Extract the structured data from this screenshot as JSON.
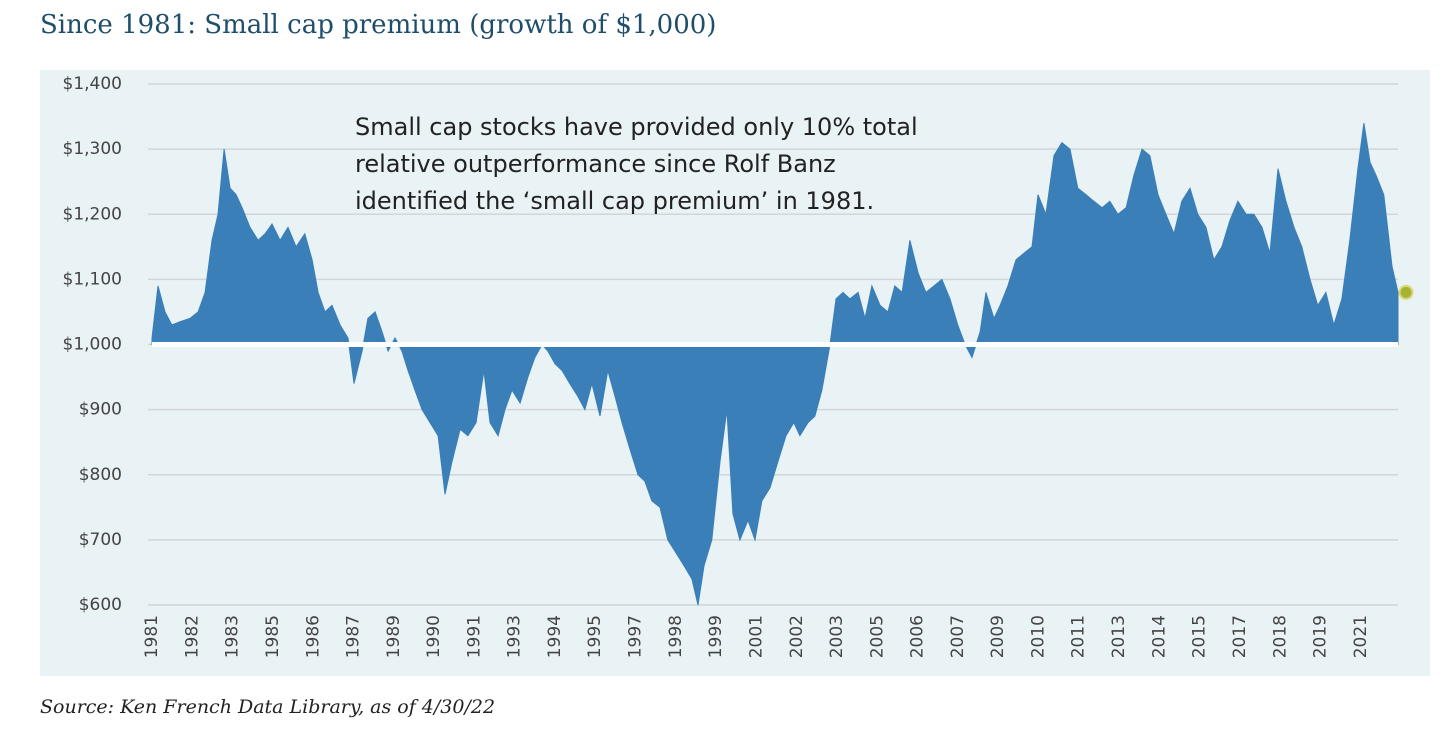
{
  "chart_data": {
    "type": "area",
    "title": "Since 1981: Small cap premium (growth of $1,000)",
    "annotation": [
      "Small cap stocks have provided only 10% total",
      "relative outperformance since Rolf Banz",
      "identified the ‘small cap premium’ in 1981."
    ],
    "source": "Source: Ken French Data Library, as of 4/30/22",
    "color": "#3a7fb8",
    "marker_color": "#a9b331",
    "highlight_last": true,
    "baseline": 1000,
    "grid": true,
    "xlim": [
      1981,
      2022.33
    ],
    "ylim": [
      600,
      1400
    ],
    "yticks": [
      {
        "value": 600,
        "label": "$600"
      },
      {
        "value": 700,
        "label": "$700"
      },
      {
        "value": 800,
        "label": "$800"
      },
      {
        "value": 900,
        "label": "$900"
      },
      {
        "value": 1000,
        "label": "$1,000"
      },
      {
        "value": 1100,
        "label": "$1,100"
      },
      {
        "value": 1200,
        "label": "$1,200"
      },
      {
        "value": 1300,
        "label": "$1,300"
      },
      {
        "value": 1400,
        "label": "$1,400"
      }
    ],
    "xticks": [
      {
        "value": 1981.0,
        "label": "1981"
      },
      {
        "value": 1982.34,
        "label": "1982"
      },
      {
        "value": 1983.67,
        "label": "1983"
      },
      {
        "value": 1985.01,
        "label": "1985"
      },
      {
        "value": 1986.35,
        "label": "1986"
      },
      {
        "value": 1987.68,
        "label": "1987"
      },
      {
        "value": 1989.02,
        "label": "1989"
      },
      {
        "value": 1990.36,
        "label": "1990"
      },
      {
        "value": 1991.69,
        "label": "1991"
      },
      {
        "value": 1993.03,
        "label": "1993"
      },
      {
        "value": 1994.37,
        "label": "1994"
      },
      {
        "value": 1995.7,
        "label": "1995"
      },
      {
        "value": 1997.04,
        "label": "1997"
      },
      {
        "value": 1998.38,
        "label": "1998"
      },
      {
        "value": 1999.71,
        "label": "1999"
      },
      {
        "value": 2001.05,
        "label": "2001"
      },
      {
        "value": 2002.39,
        "label": "2002"
      },
      {
        "value": 2003.72,
        "label": "2003"
      },
      {
        "value": 2005.06,
        "label": "2005"
      },
      {
        "value": 2006.4,
        "label": "2006"
      },
      {
        "value": 2007.73,
        "label": "2007"
      },
      {
        "value": 2009.07,
        "label": "2009"
      },
      {
        "value": 2010.41,
        "label": "2010"
      },
      {
        "value": 2011.74,
        "label": "2011"
      },
      {
        "value": 2013.08,
        "label": "2013"
      },
      {
        "value": 2014.42,
        "label": "2014"
      },
      {
        "value": 2015.75,
        "label": "2015"
      },
      {
        "value": 2017.09,
        "label": "2017"
      },
      {
        "value": 2018.43,
        "label": "2018"
      },
      {
        "value": 2019.76,
        "label": "2019"
      },
      {
        "value": 2021.1,
        "label": "2021"
      }
    ],
    "x": [
      1981.0,
      1981.2,
      1981.43,
      1981.66,
      1981.93,
      1982.26,
      1982.53,
      1982.76,
      1982.99,
      1983.19,
      1983.39,
      1983.59,
      1983.79,
      1983.99,
      1984.25,
      1984.52,
      1984.75,
      1984.98,
      1985.25,
      1985.51,
      1985.78,
      1986.07,
      1986.31,
      1986.51,
      1986.74,
      1986.97,
      1987.24,
      1987.5,
      1987.7,
      1987.97,
      1988.16,
      1988.4,
      1988.63,
      1988.83,
      1989.06,
      1989.29,
      1989.49,
      1989.72,
      1989.96,
      1990.22,
      1990.49,
      1990.72,
      1990.95,
      1991.22,
      1991.48,
      1991.75,
      1992.01,
      1992.21,
      1992.48,
      1992.71,
      1992.94,
      1993.21,
      1993.47,
      1993.7,
      1993.94,
      1994.13,
      1994.37,
      1994.6,
      1994.86,
      1995.13,
      1995.36,
      1995.59,
      1995.86,
      1996.12,
      1996.36,
      1996.59,
      1996.85,
      1997.12,
      1997.35,
      1997.58,
      1997.85,
      1998.11,
      1998.38,
      1998.65,
      1998.91,
      1999.11,
      1999.31,
      1999.57,
      1999.84,
      2000.07,
      2000.27,
      2000.5,
      2000.77,
      2001.0,
      2001.23,
      2001.5,
      2001.76,
      2002.03,
      2002.29,
      2002.49,
      2002.76,
      2002.99,
      2003.22,
      2003.49,
      2003.69,
      2003.92,
      2004.15,
      2004.42,
      2004.65,
      2004.88,
      2005.15,
      2005.41,
      2005.64,
      2005.88,
      2006.14,
      2006.41,
      2006.67,
      2006.94,
      2007.2,
      2007.47,
      2007.73,
      2007.97,
      2008.2,
      2008.47,
      2008.66,
      2008.93,
      2009.13,
      2009.39,
      2009.66,
      2009.92,
      2010.19,
      2010.39,
      2010.65,
      2010.92,
      2011.18,
      2011.45,
      2011.71,
      2011.98,
      2012.24,
      2012.51,
      2012.77,
      2013.04,
      2013.31,
      2013.57,
      2013.84,
      2014.1,
      2014.37,
      2014.63,
      2014.9,
      2015.16,
      2015.43,
      2015.69,
      2015.96,
      2016.22,
      2016.49,
      2016.75,
      2017.02,
      2017.29,
      2017.55,
      2017.82,
      2018.08,
      2018.35,
      2018.61,
      2018.88,
      2019.14,
      2019.41,
      2019.67,
      2019.94,
      2020.2,
      2020.47,
      2020.73,
      2021.0,
      2021.2,
      2021.4,
      2021.6,
      2021.86,
      2022.13,
      2022.33
    ],
    "values": [
      1010,
      1090,
      1050,
      1030,
      1035,
      1040,
      1050,
      1080,
      1160,
      1200,
      1300,
      1240,
      1230,
      1210,
      1180,
      1160,
      1170,
      1185,
      1160,
      1180,
      1150,
      1170,
      1130,
      1080,
      1050,
      1060,
      1030,
      1010,
      940,
      990,
      1040,
      1050,
      1020,
      990,
      1010,
      990,
      960,
      930,
      900,
      880,
      860,
      770,
      820,
      870,
      860,
      880,
      960,
      880,
      860,
      900,
      930,
      910,
      950,
      980,
      1000,
      990,
      970,
      960,
      940,
      920,
      900,
      940,
      890,
      960,
      920,
      880,
      840,
      800,
      790,
      760,
      750,
      700,
      680,
      660,
      640,
      600,
      660,
      700,
      820,
      900,
      740,
      700,
      730,
      700,
      760,
      780,
      820,
      860,
      880,
      860,
      880,
      890,
      930,
      1000,
      1070,
      1080,
      1070,
      1080,
      1040,
      1090,
      1060,
      1050,
      1090,
      1080,
      1160,
      1110,
      1080,
      1090,
      1100,
      1070,
      1030,
      1000,
      980,
      1020,
      1080,
      1040,
      1060,
      1090,
      1130,
      1140,
      1150,
      1230,
      1200,
      1290,
      1310,
      1300,
      1240,
      1230,
      1220,
      1210,
      1220,
      1200,
      1210,
      1260,
      1300,
      1290,
      1230,
      1200,
      1170,
      1220,
      1240,
      1200,
      1180,
      1130,
      1150,
      1190,
      1220,
      1200,
      1200,
      1180,
      1140,
      1270,
      1220,
      1180,
      1150,
      1100,
      1060,
      1080,
      1030,
      1070,
      1160,
      1270,
      1340,
      1280,
      1260,
      1230,
      1120,
      1080
    ]
  }
}
